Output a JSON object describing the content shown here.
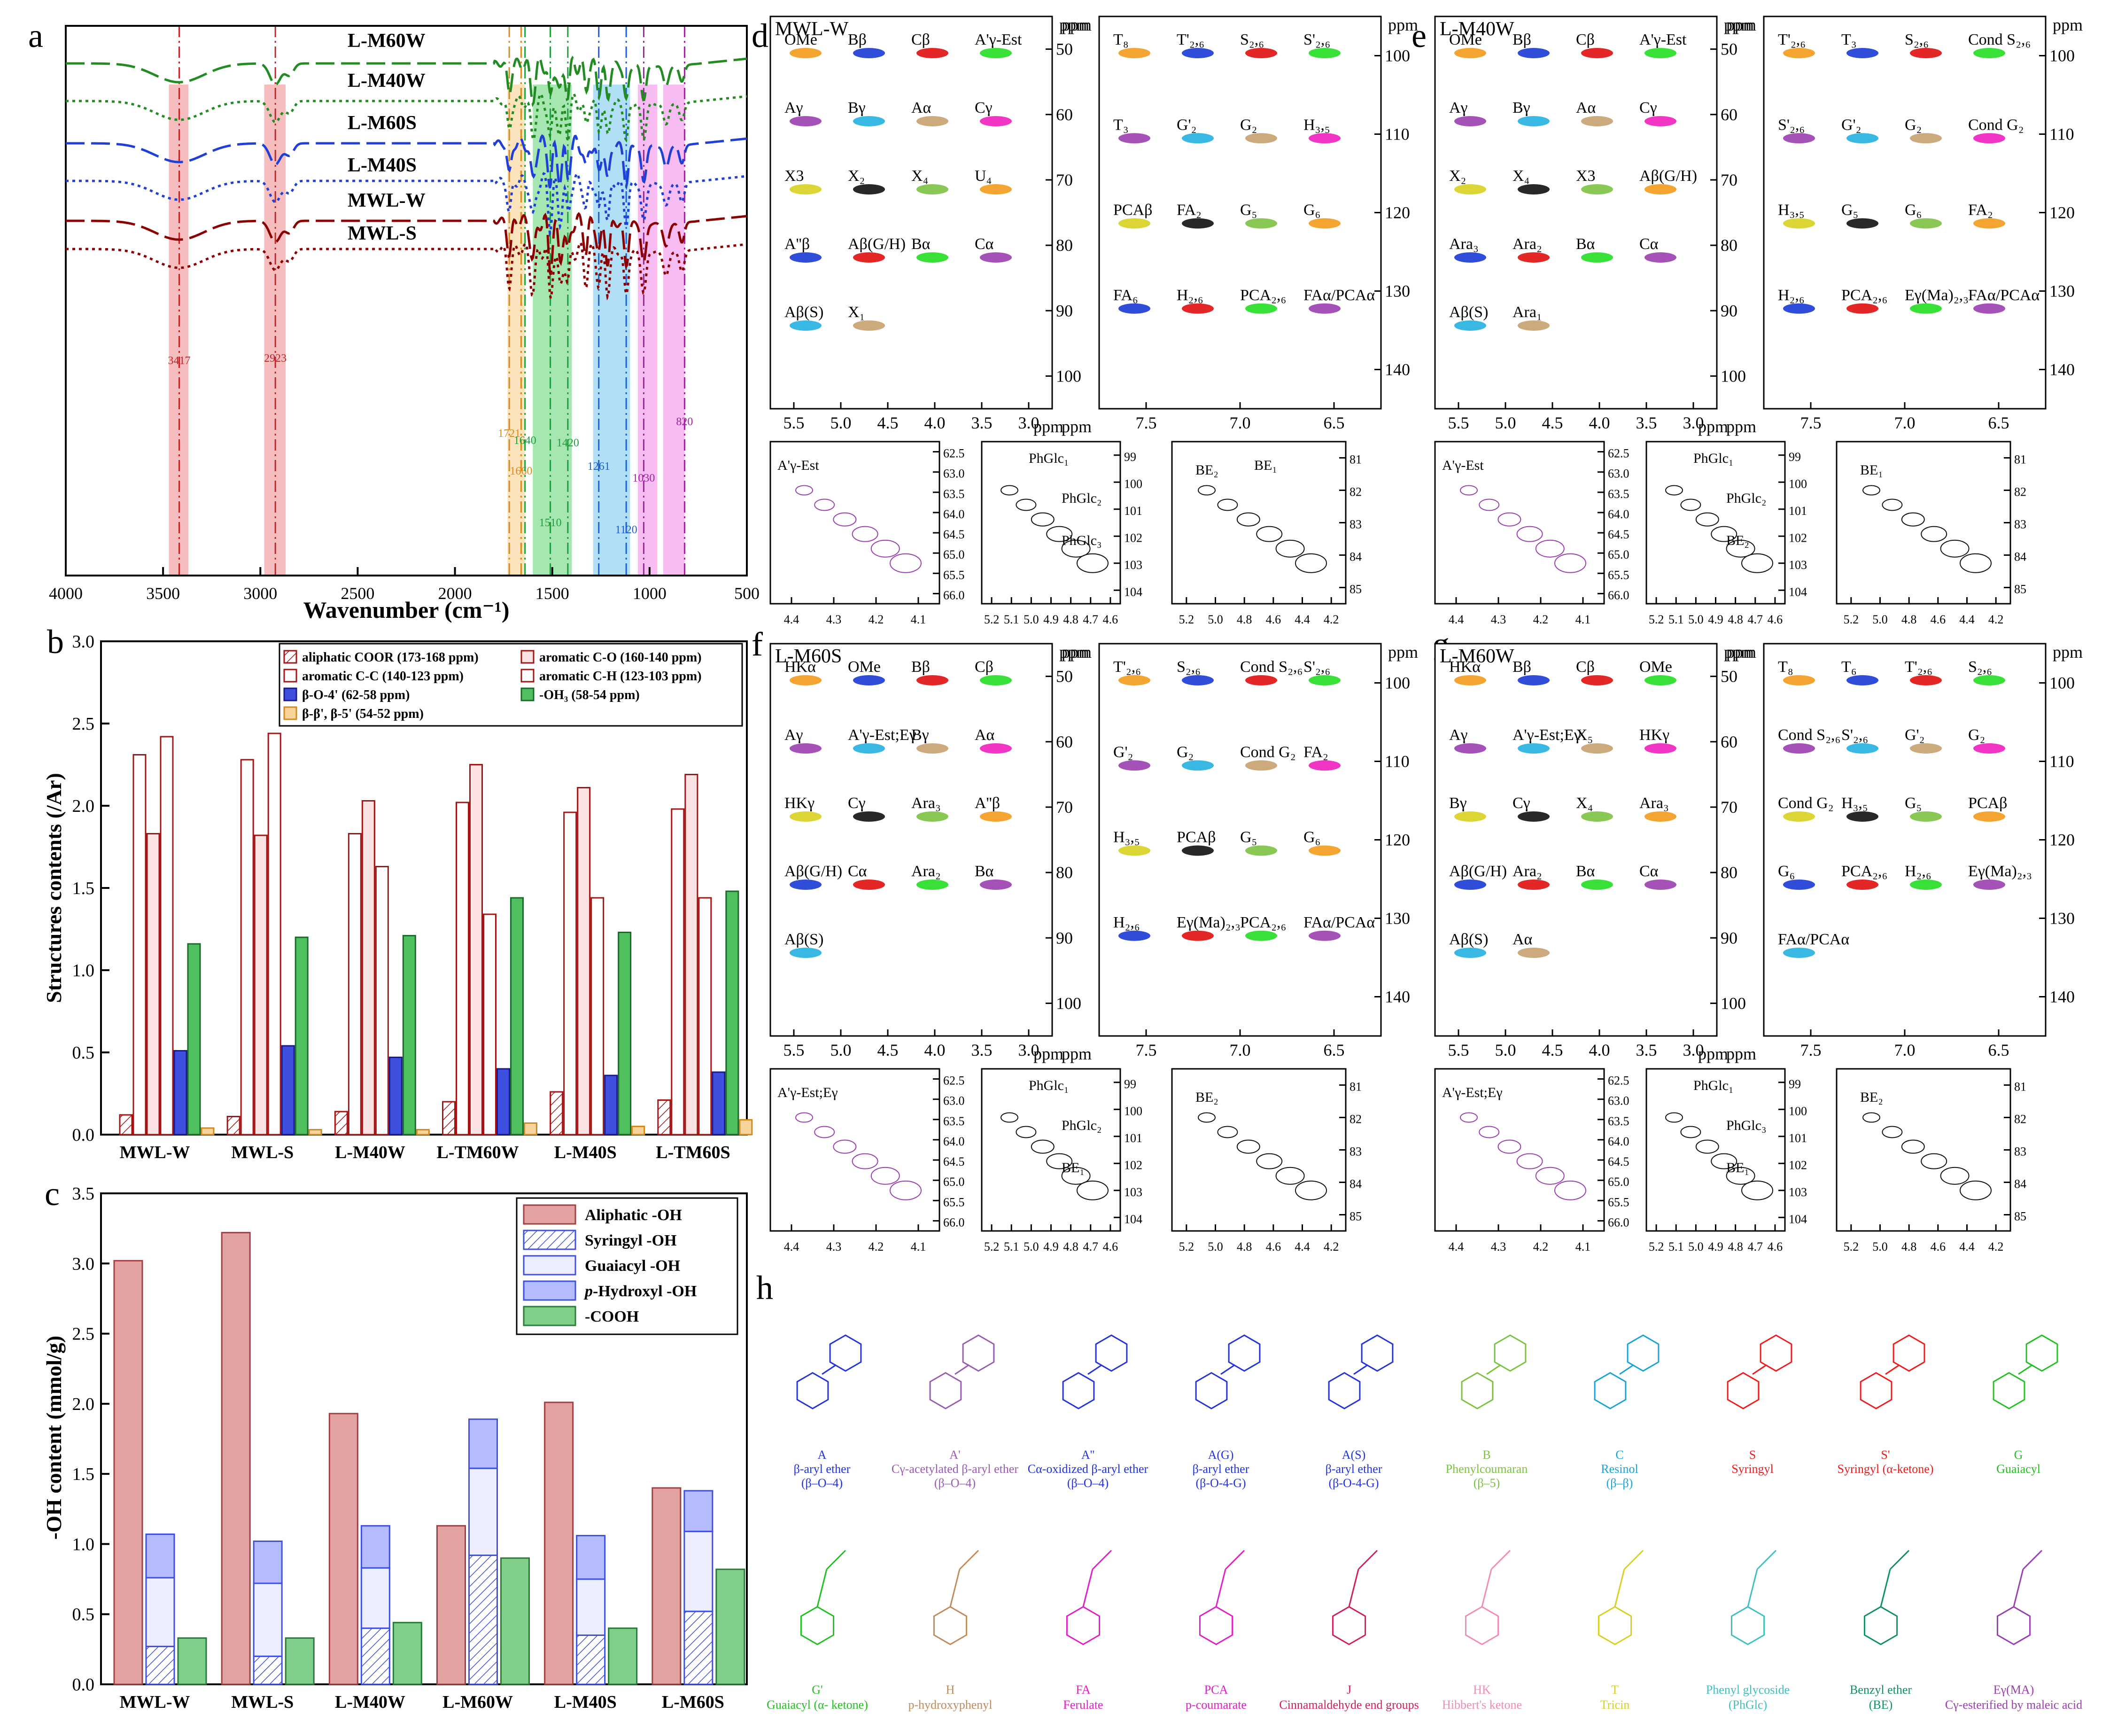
{
  "panel_letters": [
    "a",
    "b",
    "c",
    "d",
    "e",
    "f",
    "g",
    "h"
  ],
  "chart_data": [
    {
      "id": "ftir",
      "type": "line",
      "panel": "a",
      "xlabel": "Wavenumber (cm⁻¹)",
      "xlim": [
        4000,
        500
      ],
      "xticks": [
        4000,
        3500,
        3000,
        2500,
        2000,
        1500,
        1000,
        500
      ],
      "series": [
        {
          "name": "L-M60W",
          "color": "#228B22",
          "dash": "long"
        },
        {
          "name": "L-M40W",
          "color": "#228B22",
          "dash": "dot"
        },
        {
          "name": "L-M60S",
          "color": "#1f3fd6",
          "dash": "long"
        },
        {
          "name": "L-M40S",
          "color": "#1f3fd6",
          "dash": "dot"
        },
        {
          "name": "MWL-W",
          "color": "#8B0000",
          "dash": "long"
        },
        {
          "name": "MWL-S",
          "color": "#8B0000",
          "dash": "dot"
        }
      ],
      "bands": [
        {
          "label": "3417",
          "value": 3417,
          "color": "#c0262c",
          "shade": "#f4b6b6"
        },
        {
          "label": "2923",
          "value": 2923,
          "color": "#c0262c",
          "shade": "#f4b6b6"
        },
        {
          "label": "1721",
          "value": 1721,
          "color": "#d98a1e",
          "shade": "#fbe0b5"
        },
        {
          "label": "1660",
          "value": 1660,
          "color": "#d98a1e",
          "shade": "#fbe0b5"
        },
        {
          "label": "1640",
          "value": 1640,
          "color": "#1f9d3f",
          "shade": "#9be3a8"
        },
        {
          "label": "1510",
          "value": 1510,
          "color": "#1f9d3f",
          "shade": "#9be3a8"
        },
        {
          "label": "1420",
          "value": 1420,
          "color": "#1f9d3f",
          "shade": "#9be3a8"
        },
        {
          "label": "1261",
          "value": 1261,
          "color": "#1f5fd6",
          "shade": "#a9dcf5"
        },
        {
          "label": "1120",
          "value": 1120,
          "color": "#1f5fd6",
          "shade": "#a9dcf5"
        },
        {
          "label": "1030",
          "value": 1030,
          "color": "#a0249c",
          "shade": "#f6b5ef"
        },
        {
          "label": "820",
          "value": 820,
          "color": "#a0249c",
          "shade": "#f6b5ef"
        }
      ]
    },
    {
      "id": "structures",
      "type": "bar",
      "panel": "b",
      "ylabel": "Structures contents (/Ar)",
      "ylim": [
        0,
        3.0
      ],
      "yticks": [
        "0.0",
        "0.5",
        "1.0",
        "1.5",
        "2.0",
        "2.5",
        "3.0"
      ],
      "categories": [
        "MWL-W",
        "MWL-S",
        "L-M40W",
        "L-TM60W",
        "L-M40S",
        "L-TM60S"
      ],
      "series": [
        {
          "name": "aliphatic COOR (173-168 ppm)",
          "values": [
            0.12,
            0.11,
            0.14,
            0.2,
            0.26,
            0.21
          ],
          "color": "#ffffff",
          "stroke": "#a31515",
          "hatch": true
        },
        {
          "name": "aromatic C-C (140-123 ppm)",
          "values": [
            2.31,
            2.28,
            1.83,
            2.02,
            1.96,
            1.98
          ],
          "color": "#ffffff",
          "stroke": "#a31515"
        },
        {
          "name": "aromatic C-O (160-140 ppm)",
          "values": [
            1.83,
            1.82,
            2.03,
            2.25,
            2.11,
            2.19
          ],
          "color": "#fbe3e3",
          "stroke": "#a31515"
        },
        {
          "name": "aromatic C-H (123-103 ppm)",
          "values": [
            2.42,
            2.44,
            1.63,
            1.34,
            1.44,
            1.44
          ],
          "color": "#ffffff",
          "stroke": "#a31515"
        },
        {
          "name": "β-O-4' (62-58 ppm)",
          "values": [
            0.51,
            0.54,
            0.47,
            0.4,
            0.36,
            0.38
          ],
          "color": "#3f4fe0",
          "stroke": "#1a1a8c"
        },
        {
          "name": "-OH₃ (58-54 ppm)",
          "values": [
            1.16,
            1.2,
            1.21,
            1.44,
            1.23,
            1.48
          ],
          "color": "#4fbf5f",
          "stroke": "#1a6b2a"
        },
        {
          "name": "β-β', β-5' (54-52 ppm)",
          "values": [
            0.04,
            0.03,
            0.03,
            0.07,
            0.05,
            0.09
          ],
          "color": "#f9d49a",
          "stroke": "#d08a20"
        }
      ]
    },
    {
      "id": "hydroxyl",
      "type": "bar",
      "panel": "c",
      "ylabel": "-OH content (mmol/g)",
      "ylim": [
        0,
        3.5
      ],
      "yticks": [
        "0.0",
        "0.5",
        "1.0",
        "1.5",
        "2.0",
        "2.5",
        "3.0",
        "3.5"
      ],
      "categories": [
        "MWL-W",
        "MWL-S",
        "L-M40W",
        "L-M60W",
        "L-M40S",
        "L-M60S"
      ],
      "series": [
        {
          "name": "Aliphatic -OH",
          "values": [
            3.02,
            3.22,
            1.93,
            1.13,
            2.01,
            1.4
          ],
          "color": "#e3a2a2"
        },
        {
          "name": "Syringyl -OH",
          "values": [
            0.27,
            0.2,
            0.4,
            0.92,
            0.35,
            0.52
          ],
          "color": "#ffffff",
          "hatch": true
        },
        {
          "name": "Guaiacyl -OH",
          "values": [
            0.49,
            0.52,
            0.43,
            0.62,
            0.4,
            0.57
          ],
          "color": "#eceeff"
        },
        {
          "name": "p-Hydroxyl -OH",
          "values": [
            0.31,
            0.3,
            0.3,
            0.35,
            0.31,
            0.29
          ],
          "color": "#b4bcff"
        },
        {
          "name": "-COOH",
          "values": [
            0.33,
            0.33,
            0.44,
            0.9,
            0.4,
            0.82
          ],
          "color": "#7fcf8b"
        }
      ],
      "legend_labels": [
        "Aliphatic -OH",
        "Syringyl -OH",
        "Guaiacyl -OH",
        "-Hydroxyl -OH",
        "-COOH"
      ],
      "legend_italic_prefix": "p"
    }
  ],
  "nmr": {
    "ppm": "ppm",
    "d": {
      "title": "MWL-W"
    },
    "e": {
      "title": "L-M40W"
    },
    "f": {
      "title": "L-M60S"
    },
    "g": {
      "title": "L-M60W"
    },
    "aliph_x_ticks": [
      "5.5",
      "5.0",
      "4.5",
      "4.0",
      "3.5",
      "3.0"
    ],
    "aliph_y_ticks": [
      "50",
      "60",
      "70",
      "80",
      "90",
      "100"
    ],
    "arom_x_ticks": [
      "7.5",
      "7.0",
      "6.5"
    ],
    "arom_y_ticks": [
      "100",
      "110",
      "120",
      "130",
      "140"
    ],
    "sub1_x_ticks": [
      "4.4",
      "4.3",
      "4.2",
      "4.1"
    ],
    "sub1_y_ticks": [
      "62.5",
      "63.0",
      "63.5",
      "64.0",
      "64.5",
      "65.0",
      "65.5",
      "66.0"
    ],
    "sub2_x_ticks": [
      "5.2",
      "5.1",
      "5.0",
      "4.9",
      "4.8",
      "4.7",
      "4.6"
    ],
    "sub2_y_ticks": [
      "99",
      "100",
      "101",
      "102",
      "103",
      "104"
    ],
    "sub3_x_ticks": [
      "5.2",
      "5.0",
      "4.8",
      "4.6",
      "4.4",
      "4.2"
    ],
    "sub3_y_ticks": [
      "81",
      "82",
      "83",
      "84",
      "85"
    ],
    "labels_d_aliph": [
      "OMe",
      "Bβ",
      "Cβ",
      "A'γ-Est",
      "Aγ",
      "Bγ",
      "Aα",
      "Cγ",
      "X3",
      "X₂",
      "X₄",
      "U₄",
      "A''β",
      "Aβ(G/H)",
      "Bα",
      "Cα",
      "Aβ(S)",
      "X₁"
    ],
    "labels_d_arom": [
      "T₈",
      "T'₂,₆",
      "S₂,₆",
      "S'₂,₆",
      "T₃",
      "G'₂",
      "G₂",
      "H₃,₅",
      "PCAβ",
      "FA₂",
      "G₅",
      "G₆",
      "FA₆",
      "H₂,₆",
      "PCA₂,₆",
      "FAα/PCAα"
    ],
    "labels_d_sub": [
      "A'γ-Est",
      "PhGlc₁",
      "PhGlc₂",
      "PhGlc₃",
      "BE₂",
      "BE₁"
    ],
    "labels_e_aliph": [
      "OMe",
      "Bβ",
      "Cβ",
      "A'γ-Est",
      "Aγ",
      "Bγ",
      "Aα",
      "Cγ",
      "X₂",
      "X₄",
      "X3",
      "Aβ(G/H)",
      "Ara₃",
      "Ara₂",
      "Bα",
      "Cα",
      "Aβ(S)",
      "Ara₁"
    ],
    "labels_e_arom": [
      "T'₂,₆",
      "T₃",
      "S₂,₆",
      "Cond S₂,₆",
      "S'₂,₆",
      "G'₂",
      "G₂",
      "Cond G₂",
      "H₃,₅",
      "G₅",
      "G₆",
      "FA₂",
      "H₂,₆",
      "PCA₂,₆",
      "Eγ(Ma)₂,₃",
      "FAα/PCAα"
    ],
    "labels_e_sub": [
      "A'γ-Est",
      "PhGlc₁",
      "PhGlc₂",
      "BE₂",
      "BE₁"
    ],
    "labels_f_aliph": [
      "HKα",
      "OMe",
      "Bβ",
      "Cβ",
      "Aγ",
      "A'γ-Est;Eγ",
      "Bγ",
      "Aα",
      "HKγ",
      "Cγ",
      "Ara₃",
      "A''β",
      "Aβ(G/H)",
      "Cα",
      "Ara₂",
      "Bα",
      "Aβ(S)"
    ],
    "labels_f_arom": [
      "T'₂,₆",
      "S₂,₆",
      "Cond S₂,₆",
      "S'₂,₆",
      "G'₂",
      "G₂",
      "Cond G₂",
      "FA₂",
      "H₃,₅",
      "PCAβ",
      "G₅",
      "G₆",
      "H₂,₆",
      "Eγ(Ma)₂,₃",
      "PCA₂,₆",
      "FAα/PCAα"
    ],
    "labels_f_sub": [
      "A'γ-Est;Eγ",
      "PhGlc₁",
      "PhGlc₂",
      "BE₁",
      "BE₂"
    ],
    "labels_g_aliph": [
      "HKα",
      "Bβ",
      "Cβ",
      "OMe",
      "Aγ",
      "A'γ-Est;Eγ",
      "X₅",
      "HKγ",
      "Bγ",
      "Cγ",
      "X₄",
      "Ara₃",
      "Aβ(G/H)",
      "Ara₂",
      "Bα",
      "Cα",
      "Aβ(S)",
      "Aα"
    ],
    "labels_g_arom": [
      "T₈",
      "T₆",
      "T'₂,₆",
      "S₂,₆",
      "Cond S₂,₆",
      "S'₂,₆",
      "G'₂",
      "G₂",
      "Cond G₂",
      "H₃,₅",
      "G₅",
      "PCAβ",
      "G₆",
      "PCA₂,₆",
      "H₂,₆",
      "Eγ(Ma)₂,₃",
      "FAα/PCAα"
    ],
    "labels_g_sub": [
      "A'γ-Est;Eγ",
      "PhGlc₁",
      "PhGlc₃",
      "BE₁",
      "BE₂"
    ]
  },
  "structures": {
    "row1": [
      {
        "code": "A",
        "name": "β-aryl ether",
        "bond": "(β–O–4)",
        "color": "#2233dd"
      },
      {
        "code": "A'",
        "name": "Cγ-acetylated β-aryl ether",
        "bond": "(β–O–4)",
        "color": "#9a5cb0"
      },
      {
        "code": "A''",
        "name": "Cα-oxidized β-aryl ether",
        "bond": "(β–O–4)",
        "color": "#2233dd"
      },
      {
        "code": "A(G)",
        "name": "β-aryl ether",
        "bond": "(β-O-4-G)",
        "color": "#2233dd"
      },
      {
        "code": "A(S)",
        "name": "β-aryl ether",
        "bond": "(β-O-4-G)",
        "color": "#2233dd"
      },
      {
        "code": "B",
        "name": "Phenylcoumaran",
        "bond": "(β–5)",
        "color": "#7cc242"
      },
      {
        "code": "C",
        "name": "Resinol",
        "bond": "(β–β)",
        "color": "#19a3d6"
      },
      {
        "code": "S",
        "name": "Syringyl",
        "bond": "",
        "color": "#ee1c1c"
      },
      {
        "code": "S'",
        "name": "Syringyl (α-ketone)",
        "bond": "",
        "color": "#ee1c1c"
      },
      {
        "code": "G",
        "name": "Guaiacyl",
        "bond": "",
        "color": "#22c022"
      }
    ],
    "row2": [
      {
        "code": "G'",
        "name": "Guaiacyl (α- ketone)",
        "color": "#22c022"
      },
      {
        "code": "H",
        "name": "p-hydroxyphenyl",
        "color": "#c08a5a"
      },
      {
        "code": "FA",
        "name": "Ferulate",
        "color": "#e020c8"
      },
      {
        "code": "PCA",
        "name": "p-coumarate",
        "color": "#e020c8"
      },
      {
        "code": "J",
        "name": "Cinnamaldehyde end groups",
        "color": "#d0205a"
      },
      {
        "code": "HK",
        "name": "Hibbert's ketone",
        "color": "#f28bb8"
      },
      {
        "code": "T",
        "name": "Tricin",
        "color": "#d8d020"
      },
      {
        "code": "Phenyl glycoside",
        "name": "(PhGlc)",
        "color": "#3fbfbf"
      },
      {
        "code": "Benzyl ether",
        "name": "(BE)",
        "color": "#109060"
      },
      {
        "code": "Eγ(MA)",
        "name": "Cγ-esterified by maleic acid",
        "color": "#9b3fb0"
      }
    ]
  }
}
